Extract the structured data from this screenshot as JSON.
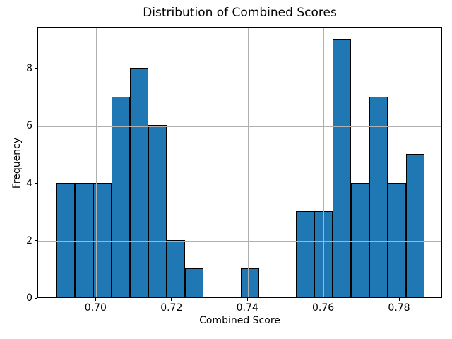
{
  "chart_data": {
    "type": "bar",
    "subtype": "histogram",
    "title": "Distribution of Combined Scores",
    "xlabel": "Combined Score",
    "ylabel": "Frequency",
    "bin_start": 0.6895,
    "bin_width": 0.00485,
    "counts": [
      4,
      4,
      4,
      7,
      8,
      6,
      2,
      1,
      0,
      0,
      1,
      0,
      0,
      3,
      3,
      9,
      4,
      7,
      4,
      5
    ],
    "xlim": [
      0.68465,
      0.79135
    ],
    "ylim": [
      0,
      9.45
    ],
    "x_ticks": [
      {
        "value": 0.7,
        "label": "0.70"
      },
      {
        "value": 0.72,
        "label": "0.72"
      },
      {
        "value": 0.74,
        "label": "0.74"
      },
      {
        "value": 0.76,
        "label": "0.76"
      },
      {
        "value": 0.78,
        "label": "0.78"
      }
    ],
    "y_ticks": [
      {
        "value": 0,
        "label": "0"
      },
      {
        "value": 2,
        "label": "2"
      },
      {
        "value": 4,
        "label": "4"
      },
      {
        "value": 6,
        "label": "6"
      },
      {
        "value": 8,
        "label": "8"
      }
    ],
    "grid": true,
    "grid_above_bars": true,
    "colors": {
      "bar_fill": "#1f77b4",
      "bar_edge": "#000000",
      "grid": "#b0b0b0",
      "spine": "#000000",
      "text": "#000000",
      "background": "#ffffff"
    }
  }
}
